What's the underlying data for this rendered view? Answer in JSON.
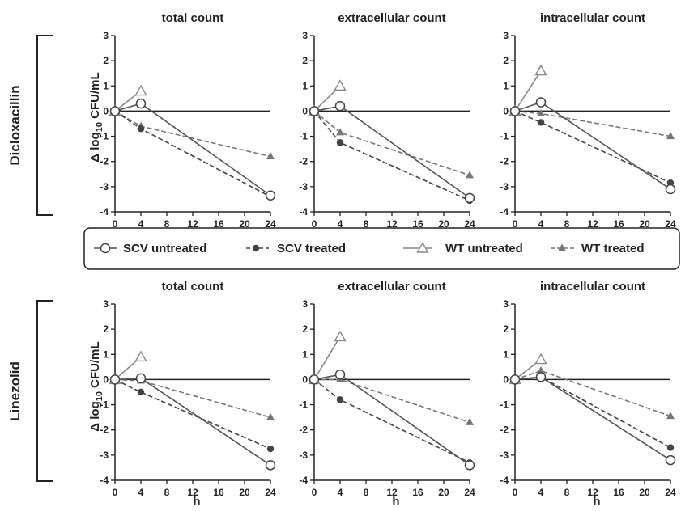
{
  "rows": [
    {
      "label": "Dicloxacillin"
    },
    {
      "label": "Linezolid"
    }
  ],
  "y_axis_label": {
    "prefix": "Δ log",
    "sub": "10",
    "suffix": " CFU/mL"
  },
  "x_axis_label": "h",
  "legend": [
    {
      "label": "SCV untreated",
      "key": "scv_untreated"
    },
    {
      "label": "SCV treated",
      "key": "scv_treated"
    },
    {
      "label": "WT untreated",
      "key": "wt_untreated"
    },
    {
      "label": "WT treated",
      "key": "wt_treated"
    }
  ],
  "series_styles": {
    "scv_untreated": {
      "color": "#555555",
      "dash": "solid",
      "marker": "open-circle"
    },
    "scv_treated": {
      "color": "#444444",
      "dash": "dashed",
      "marker": "filled-circle"
    },
    "wt_untreated": {
      "color": "#888888",
      "dash": "solid",
      "marker": "open-triangle"
    },
    "wt_treated": {
      "color": "#777777",
      "dash": "dashed",
      "marker": "filled-triangle"
    }
  },
  "chart_data": [
    {
      "type": "line",
      "row": "Dicloxacillin",
      "title": "total count",
      "xlabel": "",
      "ylabel": "Δ log10 CFU/mL",
      "x_ticks": [
        0,
        4,
        8,
        12,
        16,
        20,
        24
      ],
      "y_ticks": [
        3,
        2,
        1,
        0,
        -1,
        -2,
        -3,
        -4
      ],
      "xlim": [
        0,
        24
      ],
      "ylim": [
        -4,
        3
      ],
      "series": [
        {
          "key": "scv_untreated",
          "name": "SCV untreated",
          "x": [
            0,
            4,
            24
          ],
          "y": [
            0,
            0.3,
            -3.35
          ]
        },
        {
          "key": "scv_treated",
          "name": "SCV treated",
          "x": [
            0,
            4,
            24
          ],
          "y": [
            0,
            -0.7,
            -3.4
          ]
        },
        {
          "key": "wt_untreated",
          "name": "WT untreated",
          "x": [
            0,
            4
          ],
          "y": [
            0,
            0.8
          ]
        },
        {
          "key": "wt_treated",
          "name": "WT treated",
          "x": [
            0,
            4,
            24
          ],
          "y": [
            0,
            -0.6,
            -1.8
          ]
        }
      ]
    },
    {
      "type": "line",
      "row": "Dicloxacillin",
      "title": "extracellular count",
      "xlabel": "",
      "ylabel": "",
      "x_ticks": [
        0,
        4,
        8,
        12,
        16,
        20,
        24
      ],
      "y_ticks": [
        3,
        2,
        1,
        0,
        -1,
        -2,
        -3,
        -4
      ],
      "xlim": [
        0,
        24
      ],
      "ylim": [
        -4,
        3
      ],
      "series": [
        {
          "key": "scv_untreated",
          "name": "SCV untreated",
          "x": [
            0,
            4,
            24
          ],
          "y": [
            0,
            0.2,
            -3.45
          ]
        },
        {
          "key": "scv_treated",
          "name": "SCV treated",
          "x": [
            0,
            4,
            24
          ],
          "y": [
            0,
            -1.25,
            -3.55
          ]
        },
        {
          "key": "wt_untreated",
          "name": "WT untreated",
          "x": [
            0,
            4
          ],
          "y": [
            0,
            1.0
          ]
        },
        {
          "key": "wt_treated",
          "name": "WT treated",
          "x": [
            0,
            4,
            24
          ],
          "y": [
            0,
            -0.85,
            -2.55
          ]
        }
      ]
    },
    {
      "type": "line",
      "row": "Dicloxacillin",
      "title": "intracellular count",
      "xlabel": "",
      "ylabel": "",
      "x_ticks": [
        0,
        4,
        8,
        12,
        16,
        20,
        24
      ],
      "y_ticks": [
        3,
        2,
        1,
        0,
        -1,
        -2,
        -3,
        -4
      ],
      "xlim": [
        0,
        24
      ],
      "ylim": [
        -4,
        3
      ],
      "series": [
        {
          "key": "scv_untreated",
          "name": "SCV untreated",
          "x": [
            0,
            4,
            24
          ],
          "y": [
            0,
            0.35,
            -3.1
          ]
        },
        {
          "key": "scv_treated",
          "name": "SCV treated",
          "x": [
            0,
            4,
            24
          ],
          "y": [
            0,
            -0.45,
            -2.85
          ]
        },
        {
          "key": "wt_untreated",
          "name": "WT untreated",
          "x": [
            0,
            4
          ],
          "y": [
            0,
            1.6
          ]
        },
        {
          "key": "wt_treated",
          "name": "WT treated",
          "x": [
            0,
            4,
            24
          ],
          "y": [
            0,
            -0.1,
            -1.0
          ]
        }
      ]
    },
    {
      "type": "line",
      "row": "Linezolid",
      "title": "total count",
      "xlabel": "h",
      "ylabel": "Δ log10 CFU/mL",
      "x_ticks": [
        0,
        4,
        8,
        12,
        16,
        20,
        24
      ],
      "y_ticks": [
        3,
        2,
        1,
        0,
        -1,
        -2,
        -3,
        -4
      ],
      "xlim": [
        0,
        24
      ],
      "ylim": [
        -4,
        3
      ],
      "series": [
        {
          "key": "scv_untreated",
          "name": "SCV untreated",
          "x": [
            0,
            4,
            24
          ],
          "y": [
            0,
            0.05,
            -3.4
          ]
        },
        {
          "key": "scv_treated",
          "name": "SCV treated",
          "x": [
            0,
            4,
            24
          ],
          "y": [
            0,
            -0.5,
            -2.75
          ]
        },
        {
          "key": "wt_untreated",
          "name": "WT untreated",
          "x": [
            0,
            4
          ],
          "y": [
            0,
            0.9
          ]
        },
        {
          "key": "wt_treated",
          "name": "WT treated",
          "x": [
            0,
            4,
            24
          ],
          "y": [
            0,
            -0.05,
            -1.5
          ]
        }
      ]
    },
    {
      "type": "line",
      "row": "Linezolid",
      "title": "extracellular count",
      "xlabel": "h",
      "ylabel": "",
      "x_ticks": [
        0,
        4,
        8,
        12,
        16,
        20,
        24
      ],
      "y_ticks": [
        3,
        2,
        1,
        0,
        -1,
        -2,
        -3,
        -4
      ],
      "xlim": [
        0,
        24
      ],
      "ylim": [
        -4,
        3
      ],
      "series": [
        {
          "key": "scv_untreated",
          "name": "SCV untreated",
          "x": [
            0,
            4,
            24
          ],
          "y": [
            0,
            0.2,
            -3.4
          ]
        },
        {
          "key": "scv_treated",
          "name": "SCV treated",
          "x": [
            0,
            4,
            24
          ],
          "y": [
            0,
            -0.8,
            -3.3
          ]
        },
        {
          "key": "wt_untreated",
          "name": "WT untreated",
          "x": [
            0,
            4
          ],
          "y": [
            0,
            1.7
          ]
        },
        {
          "key": "wt_treated",
          "name": "WT treated",
          "x": [
            0,
            4,
            24
          ],
          "y": [
            0,
            0.0,
            -1.7
          ]
        }
      ]
    },
    {
      "type": "line",
      "row": "Linezolid",
      "title": "intracellular count",
      "xlabel": "h",
      "ylabel": "",
      "x_ticks": [
        0,
        4,
        8,
        12,
        16,
        20,
        24
      ],
      "y_ticks": [
        3,
        2,
        1,
        0,
        -1,
        -2,
        -3,
        -4
      ],
      "xlim": [
        0,
        24
      ],
      "ylim": [
        -4,
        3
      ],
      "series": [
        {
          "key": "scv_untreated",
          "name": "SCV untreated",
          "x": [
            0,
            4,
            24
          ],
          "y": [
            0,
            0.1,
            -3.2
          ]
        },
        {
          "key": "scv_treated",
          "name": "SCV treated",
          "x": [
            0,
            4,
            24
          ],
          "y": [
            0,
            0.1,
            -2.7
          ]
        },
        {
          "key": "wt_untreated",
          "name": "WT untreated",
          "x": [
            0,
            4
          ],
          "y": [
            0,
            0.8
          ]
        },
        {
          "key": "wt_treated",
          "name": "WT treated",
          "x": [
            0,
            4,
            24
          ],
          "y": [
            0,
            0.35,
            -1.45
          ]
        }
      ]
    }
  ]
}
